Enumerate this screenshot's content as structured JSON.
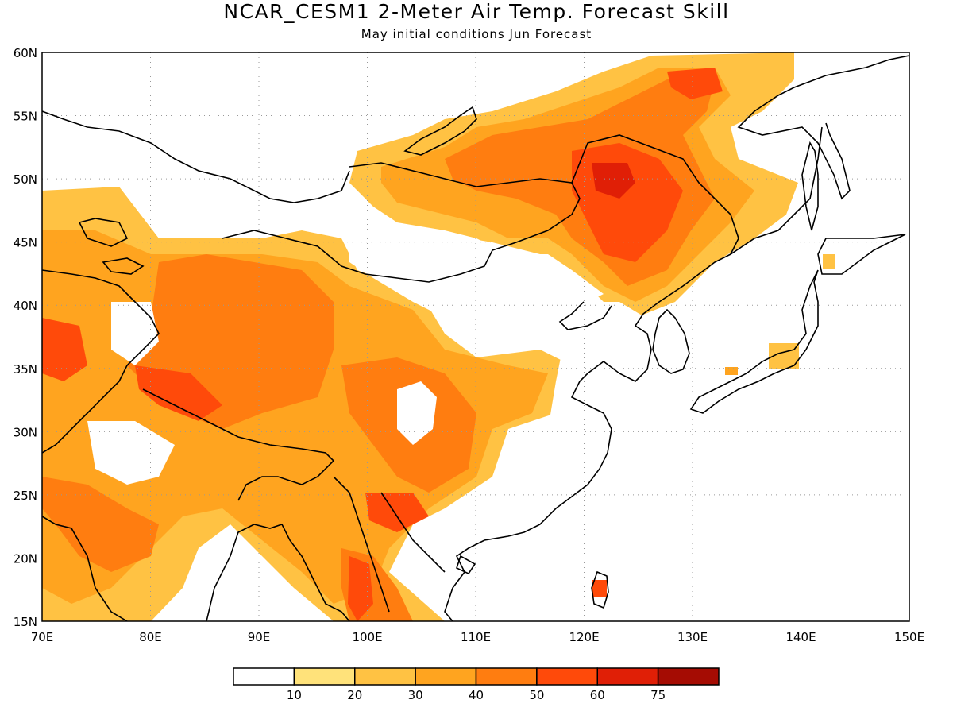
{
  "title": "NCAR_CESM1 2-Meter Air Temp. Forecast Skill",
  "subtitle": "May initial conditions  Jun Forecast",
  "map": {
    "lon_range": [
      70,
      150
    ],
    "lat_range": [
      15,
      60
    ],
    "lon_ticks": [
      "70E",
      "80E",
      "90E",
      "100E",
      "110E",
      "120E",
      "130E",
      "140E",
      "150E"
    ],
    "lat_ticks": [
      "15N",
      "20N",
      "25N",
      "30N",
      "35N",
      "40N",
      "45N",
      "50N",
      "55N",
      "60N"
    ],
    "grid": "dotted"
  },
  "colorbar": {
    "colors": [
      "#ffffff",
      "#ffe27a",
      "#ffc243",
      "#ffa41f",
      "#ff7d10",
      "#ff4a0a",
      "#e01f06",
      "#a50c03"
    ],
    "labels": [
      "10",
      "20",
      "30",
      "40",
      "50",
      "60",
      "75"
    ]
  }
}
